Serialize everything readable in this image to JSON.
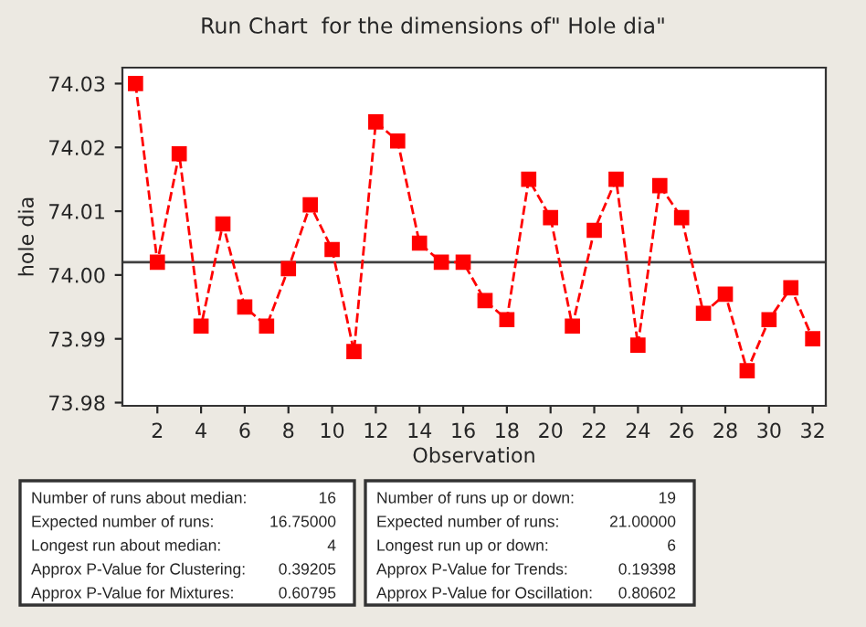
{
  "chart_data": {
    "type": "line",
    "title": "Run Chart  for the dimensions of\" Hole dia\"",
    "xlabel": "Observation",
    "ylabel": "hole dia",
    "x": [
      1,
      2,
      3,
      4,
      5,
      6,
      7,
      8,
      9,
      10,
      11,
      12,
      13,
      14,
      15,
      16,
      17,
      18,
      19,
      20,
      21,
      22,
      23,
      24,
      25,
      26,
      27,
      28,
      29,
      30,
      31,
      32
    ],
    "series": [
      {
        "color": "#ff0000",
        "values": [
          74.03,
          74.002,
          74.019,
          73.992,
          74.008,
          73.995,
          73.992,
          74.001,
          74.011,
          74.004,
          73.988,
          74.024,
          74.021,
          74.005,
          74.002,
          74.002,
          73.996,
          73.993,
          74.015,
          74.009,
          73.992,
          74.007,
          74.015,
          73.989,
          74.014,
          74.009,
          73.994,
          73.997,
          73.985,
          73.993,
          73.998,
          73.99
        ]
      }
    ],
    "xlim": [
      0.4,
      32.6
    ],
    "xticks": [
      2,
      4,
      6,
      8,
      10,
      12,
      14,
      16,
      18,
      20,
      22,
      24,
      26,
      28,
      30,
      32
    ],
    "ylim": [
      73.9795,
      74.0325
    ],
    "yticks": [
      {
        "value": 73.98,
        "label": "73.98"
      },
      {
        "value": 73.99,
        "label": "73.99"
      },
      {
        "value": 74.0,
        "label": "74.00"
      },
      {
        "value": 74.01,
        "label": "74.01"
      },
      {
        "value": 74.02,
        "label": "74.02"
      },
      {
        "value": 74.03,
        "label": "74.03"
      }
    ],
    "ref_lines": [
      {
        "axis": "y",
        "value": 74.002,
        "color": "#404040"
      }
    ],
    "marker": "square",
    "line_style": "dashed",
    "grid": false,
    "legend": false,
    "annotations": [
      "Number of runs about median:",
      "16",
      "Expected number of runs:",
      "16.75000",
      "Longest run about median:",
      "4",
      "Approx P-Value for Clustering:",
      "0.39205",
      "Approx P-Value for Mixtures:",
      "0.60795",
      "Number of runs up or down:",
      "19",
      "Expected number of runs:",
      "21.00000",
      "Longest run up or down:",
      "6",
      "Approx P-Value for Trends:",
      "0.19398",
      "Approx P-Value for Oscillation:",
      "0.80602"
    ]
  }
}
